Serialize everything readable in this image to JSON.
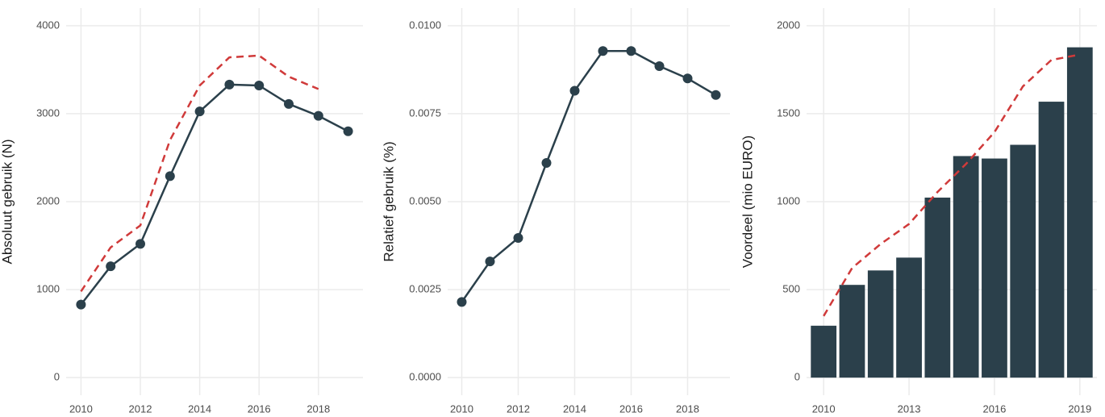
{
  "chart_data": [
    {
      "type": "line",
      "y_label": "Absoluut gebruik (N)",
      "x": [
        2010,
        2011,
        2012,
        2013,
        2014,
        2015,
        2016,
        2017,
        2018,
        2019
      ],
      "series": [
        {
          "color": "#d03a3a",
          "style": "dashed",
          "values": [
            980,
            1480,
            1730,
            2700,
            3320,
            3640,
            3660,
            3420,
            3280,
            null
          ]
        },
        {
          "color": "#2b404b",
          "style": "solid",
          "markers": true,
          "values": [
            830,
            1265,
            1520,
            2290,
            3025,
            3330,
            3320,
            3110,
            2975,
            2800
          ]
        }
      ],
      "xlim": [
        2009.5,
        2019.5
      ],
      "xticks": [
        2010,
        2012,
        2014,
        2016,
        2018
      ],
      "ylim": [
        -200,
        4200
      ],
      "yticks": [
        0,
        1000,
        2000,
        3000,
        4000
      ],
      "grid": true
    },
    {
      "type": "line",
      "y_label": "Relatief gebruik (%)",
      "x": [
        2010,
        2011,
        2012,
        2013,
        2014,
        2015,
        2016,
        2017,
        2018,
        2019
      ],
      "series": [
        {
          "color": "#2b404b",
          "style": "solid",
          "markers": true,
          "values": [
            0.00215,
            0.0033,
            0.00397,
            0.0061,
            0.00815,
            0.00928,
            0.00928,
            0.00885,
            0.0085,
            0.00803
          ]
        }
      ],
      "xlim": [
        2009.5,
        2019.5
      ],
      "xticks": [
        2010,
        2012,
        2014,
        2016,
        2018
      ],
      "ylim": [
        -0.0005,
        0.0105
      ],
      "yticks": [
        {
          "value": 0,
          "label": "0.0000"
        },
        {
          "value": 0.0025,
          "label": "0.0025"
        },
        {
          "value": 0.005,
          "label": "0.0050"
        },
        {
          "value": 0.0075,
          "label": "0.0075"
        },
        {
          "value": 0.01,
          "label": "0.0100"
        }
      ],
      "grid": true
    },
    {
      "type": "bar",
      "y_label": "Voordeel (mio EURO)",
      "x": [
        2010,
        2011,
        2012,
        2013,
        2014,
        2015,
        2016,
        2017,
        2018,
        2019
      ],
      "bars": {
        "color": "#2b404b",
        "values": [
          295,
          527,
          609,
          682,
          1023,
          1259,
          1245,
          1323,
          1568,
          1877
        ]
      },
      "series": [
        {
          "color": "#d03a3a",
          "style": "dashed",
          "values": [
            350,
            623,
            759,
            873,
            1055,
            1214,
            1395,
            1655,
            1805,
            1836
          ]
        }
      ],
      "xlim": [
        2009.4,
        2019.6
      ],
      "xticks": [
        2010,
        2013,
        2016,
        2019
      ],
      "ylim": [
        -100,
        2100
      ],
      "yticks": [
        0,
        500,
        1000,
        1500,
        2000
      ],
      "grid": true
    }
  ]
}
